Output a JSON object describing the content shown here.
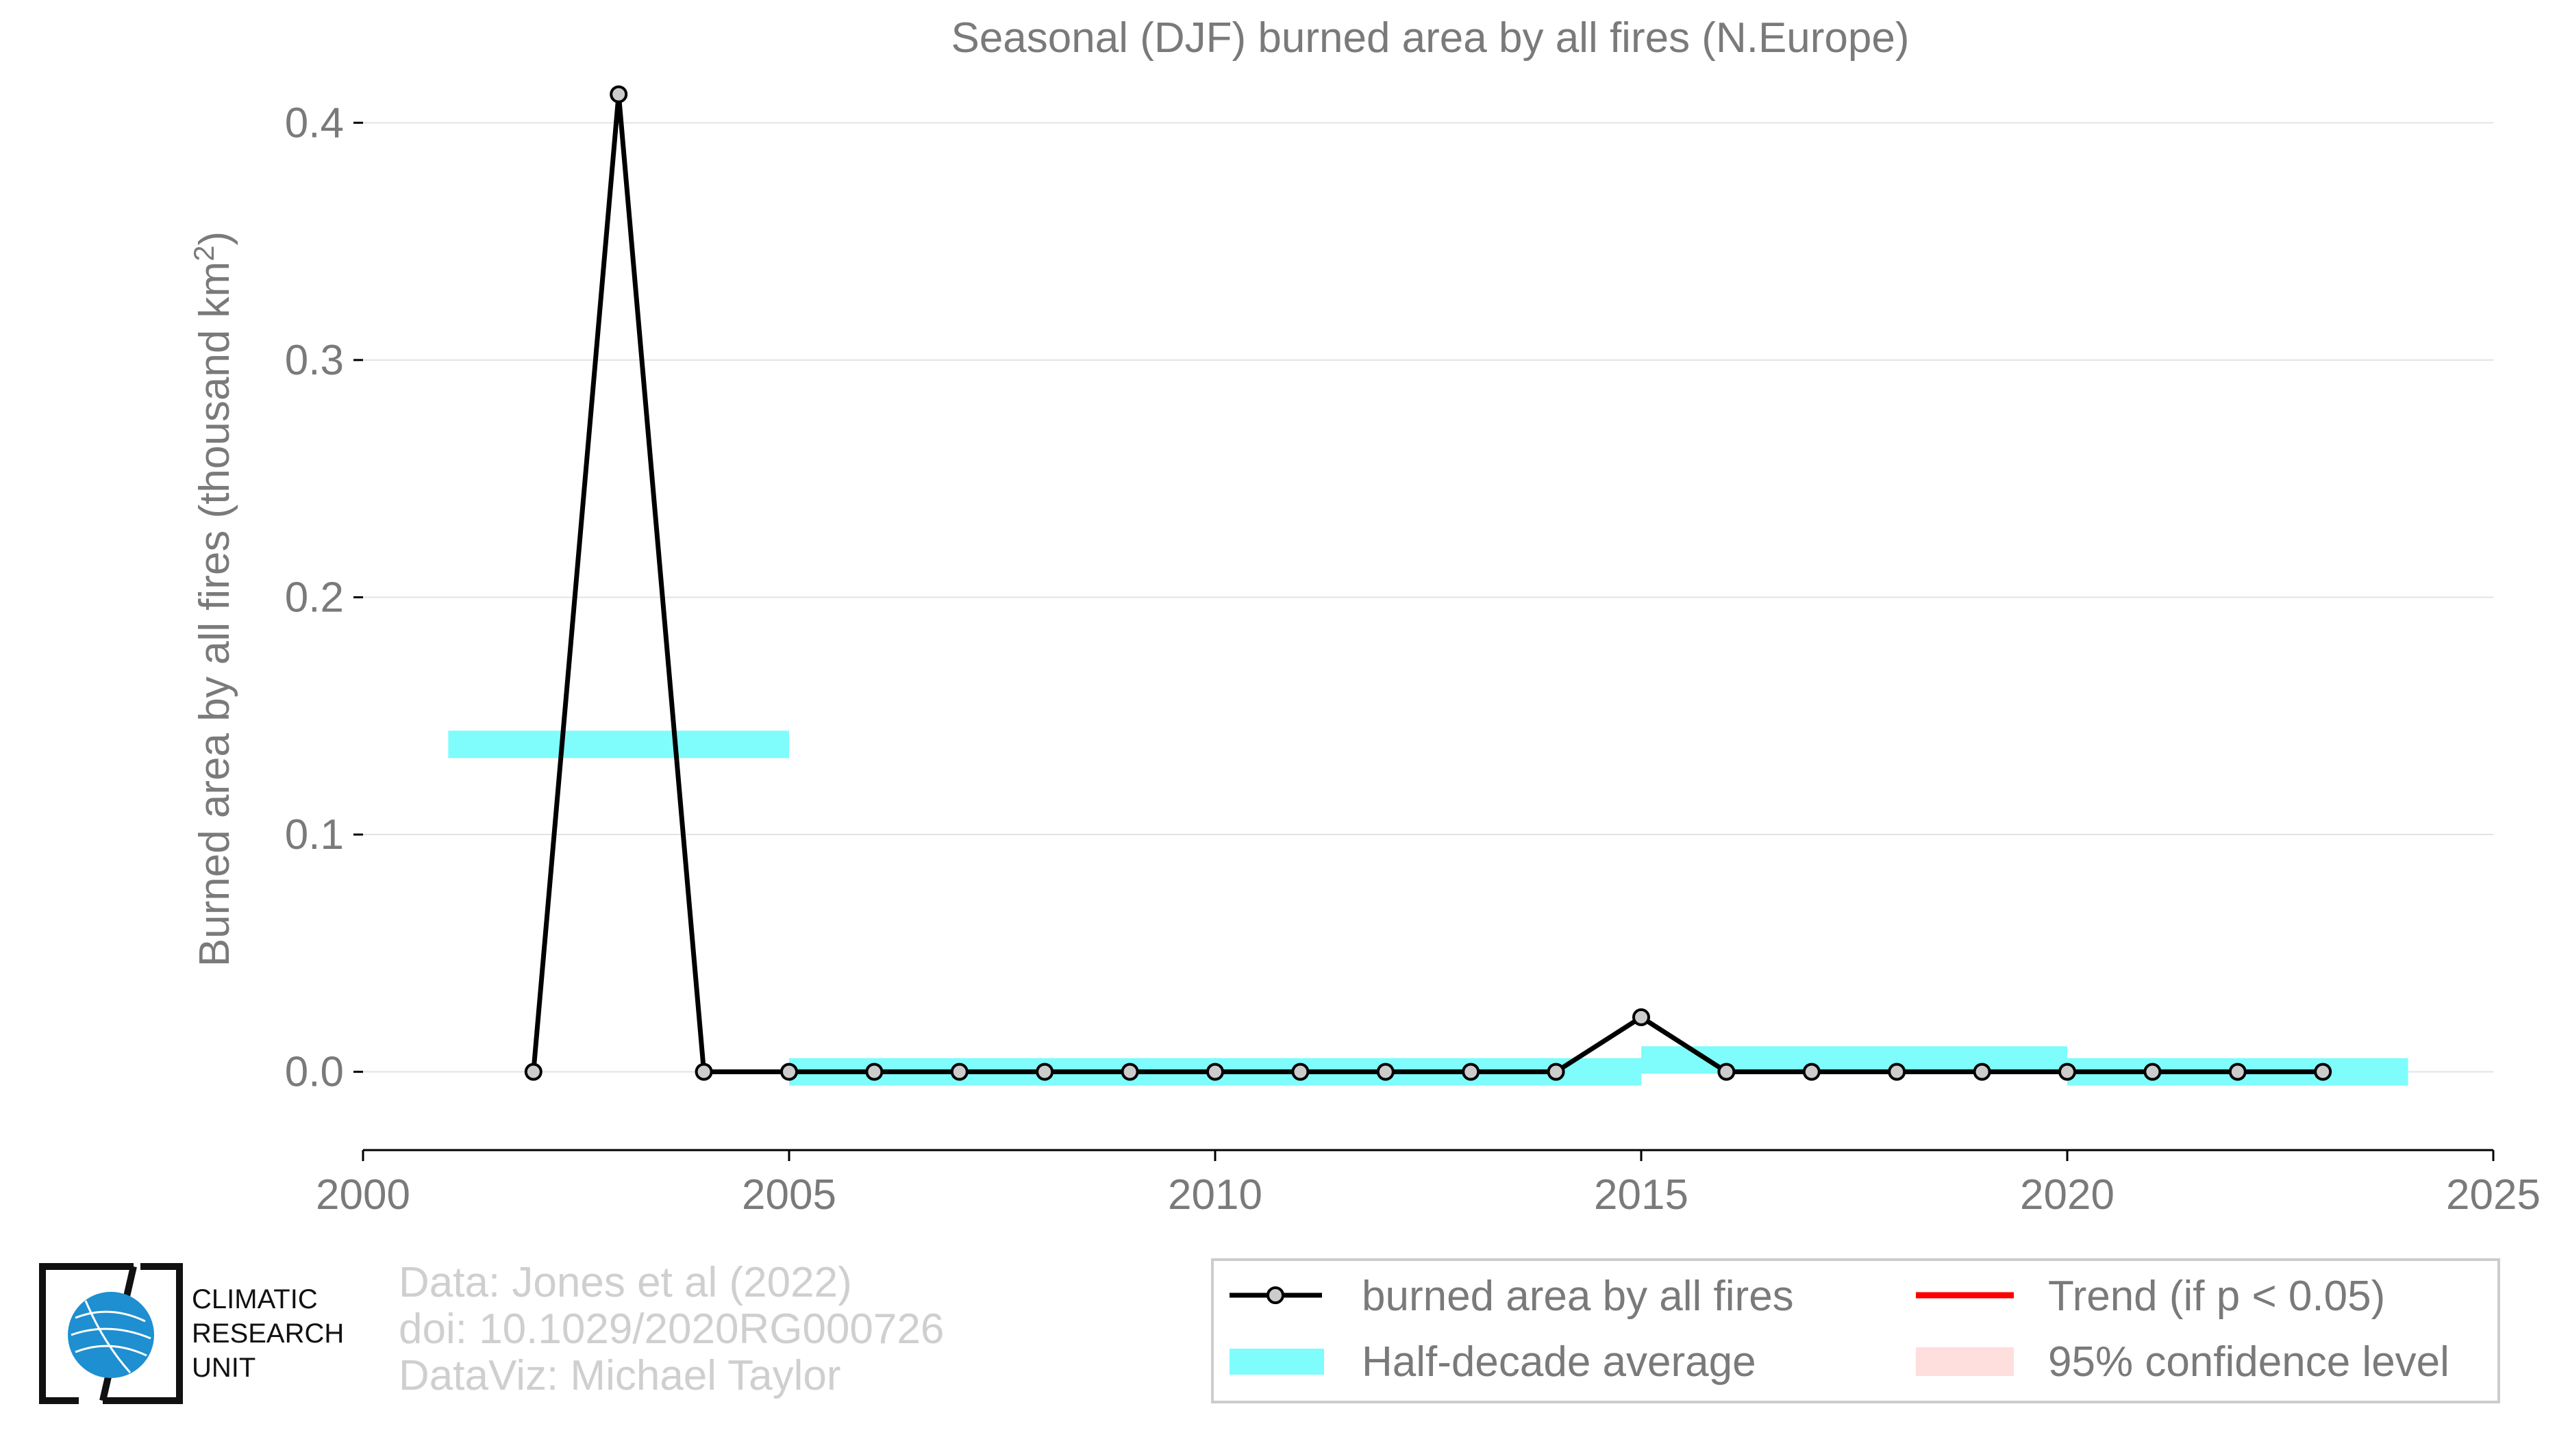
{
  "chart_data": {
    "type": "line",
    "title": "Seasonal (DJF) burned area by all fires (N.Europe)",
    "xlabel": "",
    "ylabel": "Burned area by all fires (thousand km",
    "ylabel_superscript": "2",
    "ylabel_suffix": ")",
    "xlim": [
      2000,
      2025
    ],
    "ylim": [
      -0.033,
      0.42
    ],
    "x_ticks": [
      2000,
      2005,
      2010,
      2015,
      2020,
      2025
    ],
    "y_ticks": [
      0.0,
      0.1,
      0.2,
      0.3,
      0.4
    ],
    "y_tick_labels": [
      "0.0",
      "0.1",
      "0.2",
      "0.3",
      "0.4"
    ],
    "series": [
      {
        "name": "burned area by all fires",
        "x": [
          2002,
          2003,
          2004,
          2005,
          2006,
          2007,
          2008,
          2009,
          2010,
          2011,
          2012,
          2013,
          2014,
          2015,
          2016,
          2017,
          2018,
          2019,
          2020,
          2021,
          2022,
          2023
        ],
        "values": [
          0.0,
          0.412,
          0.0,
          0.0,
          0.0,
          0.0,
          0.0,
          0.0,
          0.0,
          0.0,
          0.0,
          0.0,
          0.0,
          0.023,
          0.0,
          0.0,
          0.0,
          0.0,
          0.0,
          0.0,
          0.0,
          0.0
        ]
      }
    ],
    "half_decade_average": [
      {
        "x_start": 2001,
        "x_end": 2005,
        "value": 0.138
      },
      {
        "x_start": 2005,
        "x_end": 2015,
        "value": 0.0
      },
      {
        "x_start": 2015,
        "x_end": 2020,
        "value": 0.005
      },
      {
        "x_start": 2020,
        "x_end": 2024,
        "value": 0.0
      }
    ],
    "legend": {
      "position": "bottom-right",
      "entries": [
        {
          "label": "burned area by all fires",
          "kind": "line-marker",
          "color": "#000000"
        },
        {
          "label": "Trend (if p < 0.05)",
          "kind": "line",
          "color": "#ff0000"
        },
        {
          "label": "Half-decade average",
          "kind": "band",
          "color": "#7ffcfc"
        },
        {
          "label": "95% confidence level",
          "kind": "band",
          "color": "#ffdede"
        }
      ]
    },
    "colors": {
      "line": "#000000",
      "marker_fill": "#cccccc",
      "half_decade": "#7ffcfc",
      "trend": "#ff0000",
      "confidence": "#ffdede",
      "grid": "#e3e3e3",
      "text": "#7a7a7a"
    },
    "grid": true
  },
  "credits": {
    "line1": "Data: Jones et al (2022)",
    "line2": "doi: 10.1029/2020RG000726",
    "line3": "DataViz: Michael Taylor"
  },
  "logo": {
    "icon": "globe-icon",
    "line1": "CLIMATIC",
    "line2": "RESEARCH",
    "line3": "UNIT"
  }
}
